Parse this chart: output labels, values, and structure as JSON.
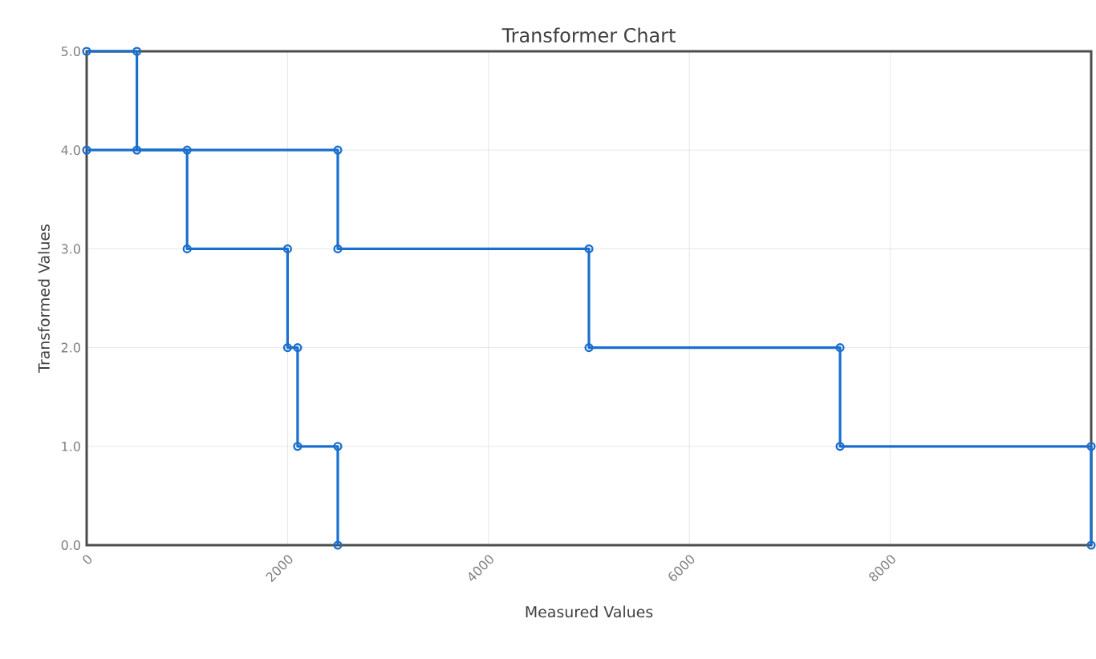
{
  "chart_data": {
    "type": "line",
    "title": "Transformer Chart",
    "xlabel": "Measured Values",
    "ylabel": "Transformed Values",
    "xlim": [
      0,
      10000
    ],
    "ylim": [
      0,
      5
    ],
    "xticks": [
      0,
      2000,
      4000,
      6000,
      8000
    ],
    "yticks": [
      {
        "value": 0,
        "label": "0.0"
      },
      {
        "value": 1,
        "label": "1.0"
      },
      {
        "value": 2,
        "label": "2.0"
      },
      {
        "value": 3,
        "label": "3.0"
      },
      {
        "value": 4,
        "label": "4.0"
      },
      {
        "value": 5,
        "label": "5.0"
      }
    ],
    "grid": true,
    "marker": "circle",
    "line_style": "solid",
    "series": [
      {
        "color": "#1a6fce",
        "x": [
          0,
          1000,
          1000,
          2000,
          2000,
          2100,
          2100,
          2500,
          2500
        ],
        "values": [
          4,
          4,
          3,
          3,
          2,
          2,
          1,
          1,
          0
        ]
      },
      {
        "color": "#1a6fce",
        "x": [
          0,
          500,
          500,
          2500,
          2500,
          5000,
          5000,
          7500,
          7500,
          10000,
          10000
        ],
        "values": [
          5,
          5,
          4,
          4,
          3,
          3,
          2,
          2,
          1,
          1,
          0
        ]
      }
    ]
  }
}
